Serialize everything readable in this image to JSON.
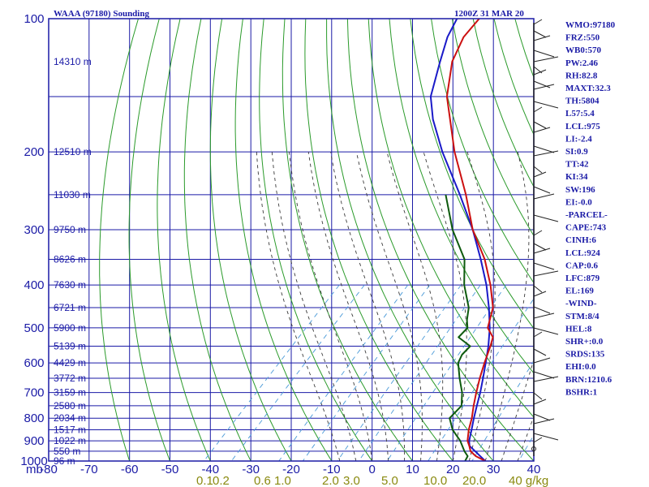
{
  "header": {
    "station": "WAAA (97180) Sounding",
    "time": "1200Z 31 MAR 20"
  },
  "colors": {
    "frame": "#1a1aa6",
    "temperature": "#cc1010",
    "dewpoint": "#0d5a0d",
    "parcel": "#1a1ac8",
    "dry_adiabat": "#2a9a2a",
    "moist_adiabat": "#3a3a3a",
    "mixing_ratio": "#4a9ad8",
    "mix_labels": "#8a8a10"
  },
  "indices": [
    "WMO:97180",
    "FRZ:550",
    "WB0:570",
    "PW:2.46",
    "RH:82.8",
    "MAXT:32.3",
    "TH:5804",
    "L57:5.4",
    "LCL:975",
    "LI:-2.4",
    "SI:0.9",
    "TT:42",
    "KI:34",
    "SW:196",
    "EI:-0.0",
    "-PARCEL-",
    "CAPE:743",
    "CINH:6",
    "LCL:924",
    "CAP:0.6",
    "LFC:879",
    "EL:169",
    "-WIND-",
    "STM:8/4",
    "HEL:8",
    "SHR+:0.0",
    "SRDS:135",
    "EHI:0.0",
    "BRN:1210.6",
    "BSHR:1"
  ],
  "chart_data": {
    "type": "line",
    "diagram": "skew-T log-p",
    "x_axis": {
      "ticks": [
        -80,
        -70,
        -60,
        -50,
        -40,
        -30,
        -20,
        -10,
        0,
        10,
        20,
        30,
        40
      ],
      "range": [
        -80,
        40
      ],
      "unit_prefix": "mb"
    },
    "y_axis": {
      "ticks": [
        100,
        200,
        300,
        400,
        500,
        600,
        700,
        800,
        900,
        1000
      ],
      "range": [
        100,
        1000
      ],
      "scale": "log",
      "reversed": true
    },
    "height_labels": [
      {
        "p": 125,
        "label": "14310 m"
      },
      {
        "p": 200,
        "label": "12510 m"
      },
      {
        "p": 250,
        "label": "11030 m"
      },
      {
        "p": 300,
        "label": "9750 m"
      },
      {
        "p": 350,
        "label": "8626 m"
      },
      {
        "p": 400,
        "label": "7630 m"
      },
      {
        "p": 450,
        "label": "6721 m"
      },
      {
        "p": 500,
        "label": "5900 m"
      },
      {
        "p": 550,
        "label": "5139 m"
      },
      {
        "p": 600,
        "label": "4429 m"
      },
      {
        "p": 650,
        "label": "3772 m"
      },
      {
        "p": 700,
        "label": "3159 m"
      },
      {
        "p": 750,
        "label": "2580 m"
      },
      {
        "p": 800,
        "label": "2034 m"
      },
      {
        "p": 850,
        "label": "1517 m"
      },
      {
        "p": 900,
        "label": "1022 m"
      },
      {
        "p": 950,
        "label": "550 m"
      },
      {
        "p": 1000,
        "label": "96 m"
      }
    ],
    "mixing_ratio_labels": [
      "0.1",
      "0.2",
      "0.6",
      "1.0",
      "2.0",
      "3.0",
      "5.0",
      "10.0",
      "20.0",
      "40 g/kg"
    ],
    "grid": true,
    "series": [
      {
        "name": "temperature",
        "values": [
          {
            "p": 1000,
            "t": 28.0
          },
          {
            "p": 975,
            "t": 24.5
          },
          {
            "p": 950,
            "t": 22.0
          },
          {
            "p": 925,
            "t": 20.5
          },
          {
            "p": 900,
            "t": 18.8
          },
          {
            "p": 850,
            "t": 16.5
          },
          {
            "p": 800,
            "t": 14.5
          },
          {
            "p": 750,
            "t": 12.0
          },
          {
            "p": 700,
            "t": 9.5
          },
          {
            "p": 650,
            "t": 7.0
          },
          {
            "p": 600,
            "t": 4.5
          },
          {
            "p": 550,
            "t": 2.0
          },
          {
            "p": 525,
            "t": 0.5
          },
          {
            "p": 500,
            "t": -3.0
          },
          {
            "p": 450,
            "t": -6.5
          },
          {
            "p": 400,
            "t": -12.5
          },
          {
            "p": 350,
            "t": -20.0
          },
          {
            "p": 300,
            "t": -30.0
          },
          {
            "p": 250,
            "t": -40.0
          },
          {
            "p": 200,
            "t": -53.0
          },
          {
            "p": 150,
            "t": -68.0
          },
          {
            "p": 125,
            "t": -75.0
          },
          {
            "p": 110,
            "t": -78.0
          },
          {
            "p": 100,
            "t": -78.5
          }
        ]
      },
      {
        "name": "dewpoint",
        "values": [
          {
            "p": 1000,
            "t": 23.0
          },
          {
            "p": 975,
            "t": 22.5
          },
          {
            "p": 950,
            "t": 20.5
          },
          {
            "p": 900,
            "t": 17.0
          },
          {
            "p": 850,
            "t": 12.5
          },
          {
            "p": 800,
            "t": 9.0
          },
          {
            "p": 750,
            "t": 9.0
          },
          {
            "p": 700,
            "t": 6.0
          },
          {
            "p": 650,
            "t": 2.0
          },
          {
            "p": 600,
            "t": -2.0
          },
          {
            "p": 575,
            "t": -3.0
          },
          {
            "p": 550,
            "t": -3.0
          },
          {
            "p": 525,
            "t": -8.0
          },
          {
            "p": 500,
            "t": -8.0
          },
          {
            "p": 480,
            "t": -10.0
          },
          {
            "p": 450,
            "t": -12.5
          },
          {
            "p": 400,
            "t": -19.0
          },
          {
            "p": 350,
            "t": -25.0
          },
          {
            "p": 300,
            "t": -35.0
          },
          {
            "p": 250,
            "t": -45.0
          }
        ]
      },
      {
        "name": "parcel",
        "values": [
          {
            "p": 1000,
            "t": 28.0
          },
          {
            "p": 924,
            "t": 20.5
          },
          {
            "p": 900,
            "t": 19.2
          },
          {
            "p": 850,
            "t": 17.2
          },
          {
            "p": 800,
            "t": 15.0
          },
          {
            "p": 750,
            "t": 12.8
          },
          {
            "p": 700,
            "t": 10.5
          },
          {
            "p": 650,
            "t": 7.8
          },
          {
            "p": 600,
            "t": 4.8
          },
          {
            "p": 550,
            "t": 1.5
          },
          {
            "p": 500,
            "t": -2.5
          },
          {
            "p": 450,
            "t": -7.5
          },
          {
            "p": 400,
            "t": -13.5
          },
          {
            "p": 350,
            "t": -21.0
          },
          {
            "p": 300,
            "t": -30.0
          },
          {
            "p": 250,
            "t": -41.5
          },
          {
            "p": 200,
            "t": -56.0
          },
          {
            "p": 169,
            "t": -66.0
          },
          {
            "p": 150,
            "t": -72.0
          },
          {
            "p": 125,
            "t": -78.0
          },
          {
            "p": 110,
            "t": -82.0
          },
          {
            "p": 100,
            "t": -84.0
          }
        ]
      }
    ]
  }
}
